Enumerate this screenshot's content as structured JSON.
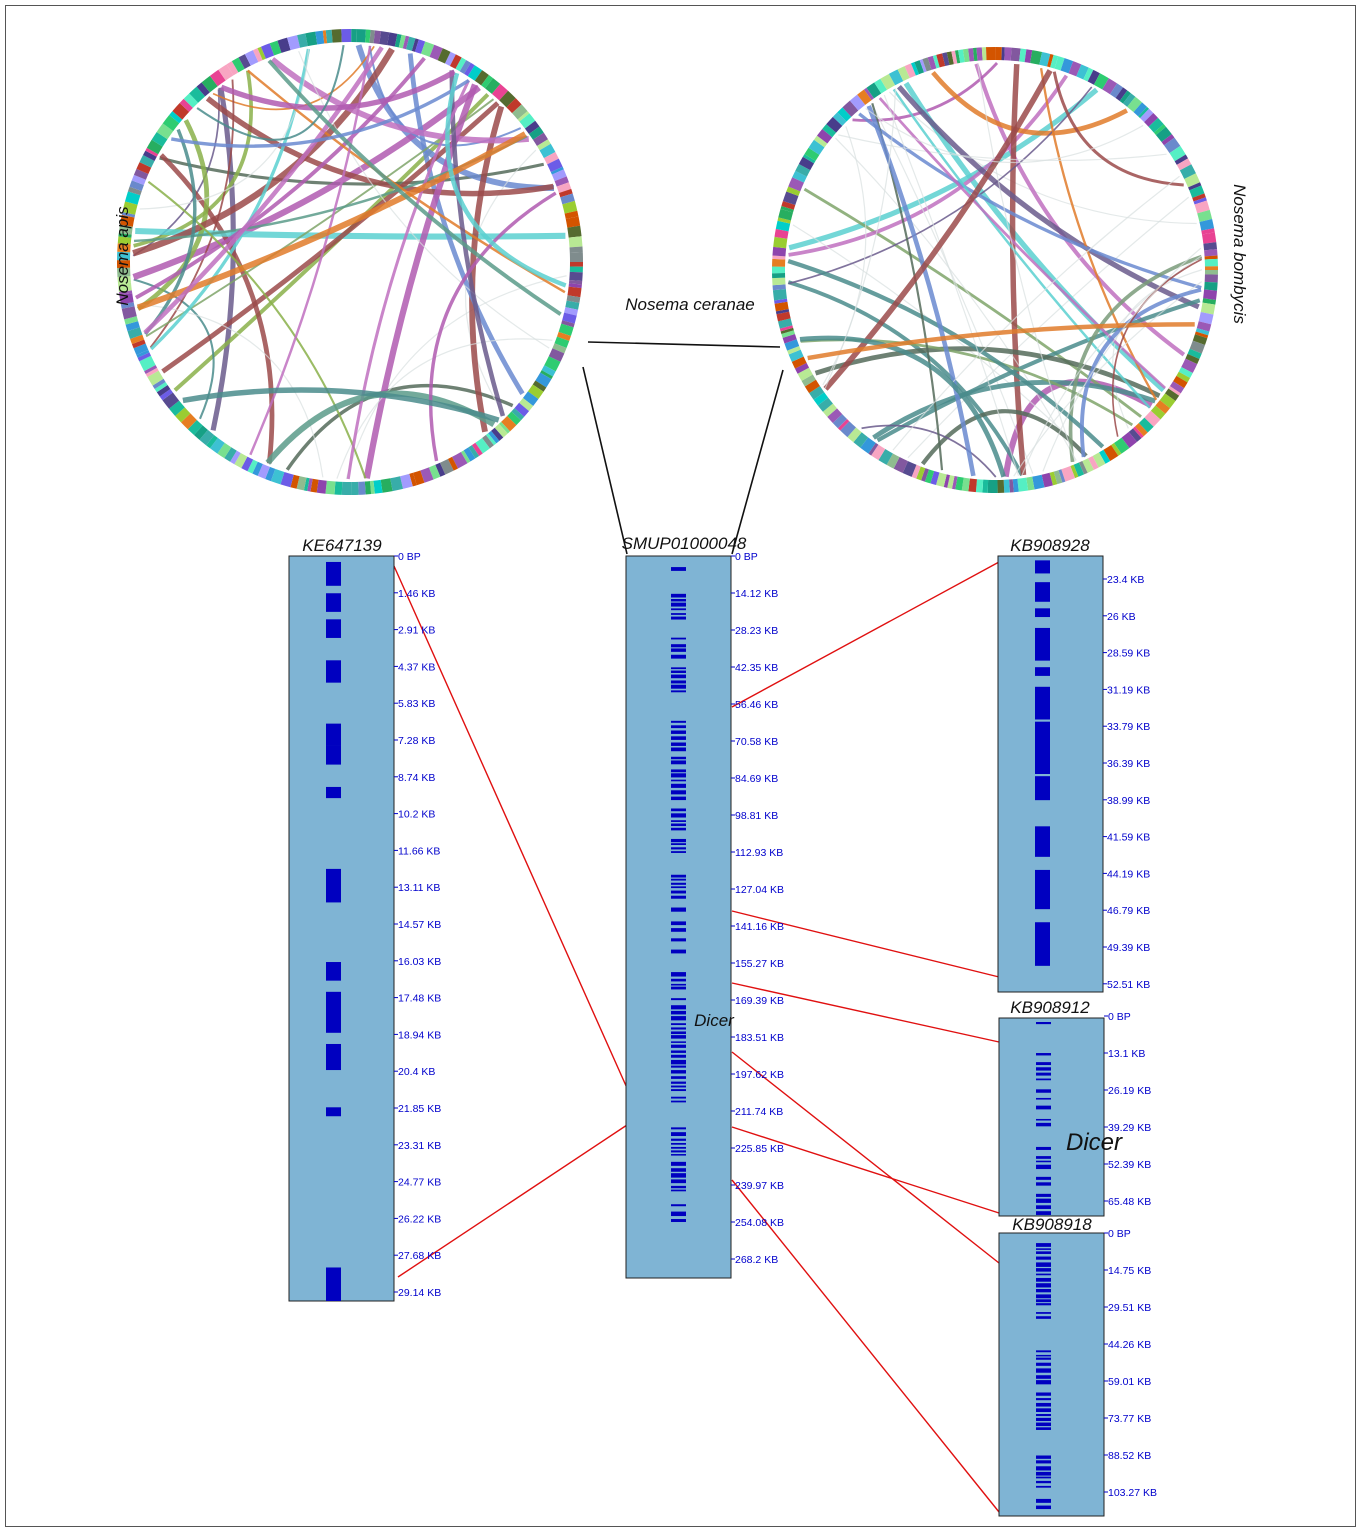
{
  "circos": [
    {
      "id": "apis",
      "label": "Nosema apis",
      "seed": 11
    },
    {
      "id": "bombycis",
      "label": "Nosema bombycis",
      "seed": 29
    }
  ],
  "center_label": "Nosema ceranae",
  "scaffolds": [
    {
      "id": "KE647139",
      "title": "KE647139",
      "ticks": [
        "0 BP",
        "1.46 KB",
        "2.91 KB",
        "4.37 KB",
        "5.83 KB",
        "7.28 KB",
        "8.74 KB",
        "10.2 KB",
        "11.66 KB",
        "13.11 KB",
        "14.57 KB",
        "16.03 KB",
        "17.48 KB",
        "18.94 KB",
        "20.4 KB",
        "21.85 KB",
        "23.31 KB",
        "24.77 KB",
        "26.22 KB",
        "27.68 KB",
        "29.14 KB"
      ],
      "dicer_label": ""
    },
    {
      "id": "SMUP01000048",
      "title": "SMUP01000048",
      "ticks": [
        "0 BP",
        "14.12 KB",
        "28.23 KB",
        "42.35 KB",
        "56.46 KB",
        "70.58 KB",
        "84.69 KB",
        "98.81 KB",
        "112.93 KB",
        "127.04 KB",
        "141.16 KB",
        "155.27 KB",
        "169.39 KB",
        "183.51 KB",
        "197.62 KB",
        "211.74 KB",
        "225.85 KB",
        "239.97 KB",
        "254.08 KB",
        "268.2 KB"
      ],
      "dicer_label": "Dicer"
    },
    {
      "id": "KB908928",
      "title": "KB908928",
      "ticks": [
        "23.4 KB",
        "26 KB",
        "28.59 KB",
        "31.19 KB",
        "33.79 KB",
        "36.39 KB",
        "38.99 KB",
        "41.59 KB",
        "44.19 KB",
        "46.79 KB",
        "49.39 KB",
        "52.51 KB"
      ],
      "dicer_label": ""
    },
    {
      "id": "KB908912",
      "title": "KB908912",
      "ticks": [
        "0 BP",
        "13.1 KB",
        "26.19 KB",
        "39.29 KB",
        "52.39 KB",
        "65.48 KB"
      ],
      "dicer_label": "Dicer"
    },
    {
      "id": "KB908918",
      "title": "KB908918",
      "ticks": [
        "0 BP",
        "14.75 KB",
        "29.51 KB",
        "44.26 KB",
        "59.01 KB",
        "73.77 KB",
        "88.52 KB",
        "103.27 KB"
      ],
      "dicer_label": ""
    }
  ],
  "colors": {
    "scaffold_fill": "#7fb4d4",
    "gene_block": "#0000c0",
    "synteny_line": "#e01010",
    "tick_text": "#0000cc"
  }
}
